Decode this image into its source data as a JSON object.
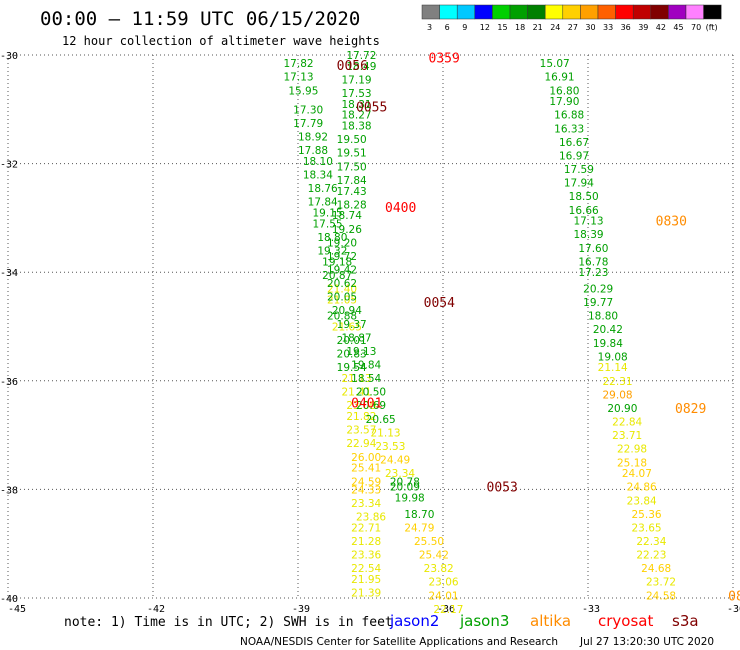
{
  "header": {
    "title": "00:00 – 11:59 UTC 06/15/2020",
    "subtitle": "12 hour collection of altimeter wave heights"
  },
  "legend": {
    "colors": [
      "#808080",
      "#00ffff",
      "#00c8ff",
      "#0000ff",
      "#00d000",
      "#00a000",
      "#008000",
      "#ffff00",
      "#ffd000",
      "#ffa000",
      "#ff6000",
      "#ff0000",
      "#c00000",
      "#800000",
      "#a000c0",
      "#ff80ff",
      "#000000"
    ],
    "labels": [
      "3",
      "6",
      "9",
      "12",
      "15",
      "18",
      "21",
      "24",
      "27",
      "30",
      "33",
      "36",
      "39",
      "42",
      "45",
      "70",
      "(ft)"
    ]
  },
  "footer": {
    "note": "note: 1) Time is in UTC; 2) SWH is in feet",
    "satellites": [
      {
        "name": "jason2",
        "color": "#0000ff"
      },
      {
        "name": "jason3",
        "color": "#00a000"
      },
      {
        "name": "altika",
        "color": "#ff8c00"
      },
      {
        "name": "cryosat",
        "color": "#ff0000"
      },
      {
        "name": "s3a",
        "color": "#800000"
      }
    ],
    "credit": "NOAA/NESDIS Center for Satellite Applications and Research",
    "timestamp": "Jul 27 13:20:30 UTC 2020"
  },
  "chart_data": {
    "type": "scatter",
    "title": "12 hour collection of altimeter wave heights",
    "x_range": [
      -45,
      -30
    ],
    "y_range": [
      -40,
      -30
    ],
    "x_ticks": [
      "-45",
      "-42",
      "-39",
      "-36",
      "-33",
      "-30"
    ],
    "y_ticks": [
      "-30",
      "-32",
      "-34",
      "-36",
      "-38",
      "-40"
    ],
    "grid": "dotted",
    "swh_units": "ft",
    "color_scale": [
      {
        "min": 15,
        "max": 21,
        "color": "#00a000"
      },
      {
        "min": 21,
        "max": 24,
        "color": "#e8e800"
      },
      {
        "min": 24,
        "max": 27,
        "color": "#ffd000"
      },
      {
        "min": 27,
        "max": 30,
        "color": "#ffa000"
      }
    ],
    "track_points": [
      {
        "lon": -39.3,
        "lat": -30.15,
        "swh": "17.82"
      },
      {
        "lon": -39.3,
        "lat": -30.4,
        "swh": "17.13"
      },
      {
        "lon": -39.2,
        "lat": -30.65,
        "swh": "15.95"
      },
      {
        "lon": -39.1,
        "lat": -31.0,
        "swh": "17.30"
      },
      {
        "lon": -39.1,
        "lat": -31.25,
        "swh": "17.79"
      },
      {
        "lon": -39.0,
        "lat": -31.5,
        "swh": "18.92"
      },
      {
        "lon": -39.0,
        "lat": -31.75,
        "swh": "17.88"
      },
      {
        "lon": -38.9,
        "lat": -31.95,
        "swh": "18.10"
      },
      {
        "lon": -38.9,
        "lat": -32.2,
        "swh": "18.34"
      },
      {
        "lon": -38.8,
        "lat": -32.45,
        "swh": "18.76"
      },
      {
        "lon": -38.8,
        "lat": -32.7,
        "swh": "17.84"
      },
      {
        "lon": -38.7,
        "lat": -32.9,
        "swh": "19.15"
      },
      {
        "lon": -38.7,
        "lat": -33.1,
        "swh": "17.55"
      },
      {
        "lon": -38.6,
        "lat": -33.35,
        "swh": "18.80"
      },
      {
        "lon": -38.6,
        "lat": -33.6,
        "swh": "19.32"
      },
      {
        "lon": -38.5,
        "lat": -33.8,
        "swh": "19.18"
      },
      {
        "lon": -38.5,
        "lat": -34.05,
        "swh": "20.87"
      },
      {
        "lon": -38.4,
        "lat": -34.3,
        "swh": "21.40"
      },
      {
        "lon": -38.4,
        "lat": -34.5,
        "swh": "21.05"
      },
      {
        "lon": -38.4,
        "lat": -34.8,
        "swh": "20.88"
      },
      {
        "lon": -38.3,
        "lat": -35.0,
        "swh": "21.65"
      },
      {
        "lon": -38.2,
        "lat": -35.25,
        "swh": "20.01"
      },
      {
        "lon": -38.2,
        "lat": -35.5,
        "swh": "20.83"
      },
      {
        "lon": -38.2,
        "lat": -35.75,
        "swh": "19.54"
      },
      {
        "lon": -38.1,
        "lat": -35.95,
        "swh": "21.13"
      },
      {
        "lon": -38.1,
        "lat": -36.2,
        "swh": "21.41"
      },
      {
        "lon": -38.0,
        "lat": -36.45,
        "swh": "23.00"
      },
      {
        "lon": -38.0,
        "lat": -36.65,
        "swh": "21.82"
      },
      {
        "lon": -38.0,
        "lat": -36.9,
        "swh": "23.57"
      },
      {
        "lon": -38.0,
        "lat": -37.15,
        "swh": "22.94"
      },
      {
        "lon": -37.9,
        "lat": -37.4,
        "swh": "26.00"
      },
      {
        "lon": -37.9,
        "lat": -37.6,
        "swh": "25.41"
      },
      {
        "lon": -37.9,
        "lat": -37.85,
        "swh": "24.59"
      },
      {
        "lon": -37.9,
        "lat": -38.0,
        "swh": "24.33"
      },
      {
        "lon": -37.9,
        "lat": -38.25,
        "swh": "23.34"
      },
      {
        "lon": -37.8,
        "lat": -38.5,
        "swh": "23.86"
      },
      {
        "lon": -37.9,
        "lat": -38.7,
        "swh": "22.71"
      },
      {
        "lon": -37.9,
        "lat": -38.95,
        "swh": "21.28"
      },
      {
        "lon": -37.9,
        "lat": -39.2,
        "swh": "23.36"
      },
      {
        "lon": -37.9,
        "lat": -39.45,
        "swh": "22.54"
      },
      {
        "lon": -37.9,
        "lat": -39.65,
        "swh": "21.95"
      },
      {
        "lon": -37.9,
        "lat": -39.9,
        "swh": "21.39"
      },
      {
        "lon": -38.0,
        "lat": -30.0,
        "swh": "17.72"
      },
      {
        "lon": -38.0,
        "lat": -30.2,
        "swh": "18.49"
      },
      {
        "lon": -38.1,
        "lat": -30.45,
        "swh": "17.19"
      },
      {
        "lon": -38.1,
        "lat": -30.7,
        "swh": "17.53"
      },
      {
        "lon": -38.1,
        "lat": -30.9,
        "swh": "18.31"
      },
      {
        "lon": -38.1,
        "lat": -31.1,
        "swh": "18.27"
      },
      {
        "lon": -38.1,
        "lat": -31.3,
        "swh": "18.38"
      },
      {
        "lon": -38.2,
        "lat": -31.55,
        "swh": "19.50"
      },
      {
        "lon": -38.2,
        "lat": -31.8,
        "swh": "19.51"
      },
      {
        "lon": -38.2,
        "lat": -32.05,
        "swh": "17.50"
      },
      {
        "lon": -38.2,
        "lat": -32.3,
        "swh": "17.84"
      },
      {
        "lon": -38.2,
        "lat": -32.5,
        "swh": "17.43"
      },
      {
        "lon": -38.2,
        "lat": -32.75,
        "swh": "18.28"
      },
      {
        "lon": -38.3,
        "lat": -32.95,
        "swh": "18.74"
      },
      {
        "lon": -38.3,
        "lat": -33.2,
        "swh": "19.26"
      },
      {
        "lon": -38.4,
        "lat": -33.45,
        "swh": "19.20"
      },
      {
        "lon": -38.4,
        "lat": -33.7,
        "swh": "19.72"
      },
      {
        "lon": -38.4,
        "lat": -33.95,
        "swh": "19.42"
      },
      {
        "lon": -38.4,
        "lat": -34.2,
        "swh": "20.62"
      },
      {
        "lon": -38.4,
        "lat": -34.45,
        "swh": "20.05"
      },
      {
        "lon": -38.3,
        "lat": -34.7,
        "swh": "20.94"
      },
      {
        "lon": -38.2,
        "lat": -34.95,
        "swh": "19.37"
      },
      {
        "lon": -38.1,
        "lat": -35.2,
        "swh": "18.87"
      },
      {
        "lon": -38.0,
        "lat": -35.45,
        "swh": "19.13"
      },
      {
        "lon": -37.9,
        "lat": -35.7,
        "swh": "19.84"
      },
      {
        "lon": -37.9,
        "lat": -35.95,
        "swh": "18.54"
      },
      {
        "lon": -37.8,
        "lat": -36.2,
        "swh": "20.50"
      },
      {
        "lon": -37.8,
        "lat": -36.45,
        "swh": "20.69"
      },
      {
        "lon": -37.6,
        "lat": -36.7,
        "swh": "20.65"
      },
      {
        "lon": -37.5,
        "lat": -36.95,
        "swh": "21.13"
      },
      {
        "lon": -37.4,
        "lat": -37.2,
        "swh": "23.53"
      },
      {
        "lon": -37.3,
        "lat": -37.45,
        "swh": "24.49"
      },
      {
        "lon": -37.2,
        "lat": -37.7,
        "swh": "23.34"
      },
      {
        "lon": -37.1,
        "lat": -37.85,
        "swh": "20.78"
      },
      {
        "lon": -37.1,
        "lat": -37.95,
        "swh": "20.09"
      },
      {
        "lon": -37.0,
        "lat": -38.15,
        "swh": "19.98"
      },
      {
        "lon": -36.8,
        "lat": -38.45,
        "swh": "18.70"
      },
      {
        "lon": -36.8,
        "lat": -38.7,
        "swh": "24.79"
      },
      {
        "lon": -36.6,
        "lat": -38.95,
        "swh": "25.50"
      },
      {
        "lon": -36.5,
        "lat": -39.2,
        "swh": "25.42"
      },
      {
        "lon": -36.4,
        "lat": -39.45,
        "swh": "23.82"
      },
      {
        "lon": -36.3,
        "lat": -39.7,
        "swh": "23.06"
      },
      {
        "lon": -36.3,
        "lat": -39.95,
        "swh": "24.01"
      },
      {
        "lon": -36.2,
        "lat": -40.2,
        "swh": "22.17"
      },
      {
        "lon": -34.0,
        "lat": -30.15,
        "swh": "15.07"
      },
      {
        "lon": -33.9,
        "lat": -30.4,
        "swh": "16.91"
      },
      {
        "lon": -33.8,
        "lat": -30.65,
        "swh": "16.80"
      },
      {
        "lon": -33.8,
        "lat": -30.85,
        "swh": "17.90"
      },
      {
        "lon": -33.7,
        "lat": -31.1,
        "swh": "16.88"
      },
      {
        "lon": -33.7,
        "lat": -31.35,
        "swh": "16.33"
      },
      {
        "lon": -33.6,
        "lat": -31.6,
        "swh": "16.67"
      },
      {
        "lon": -33.6,
        "lat": -31.85,
        "swh": "16.97"
      },
      {
        "lon": -33.5,
        "lat": -32.1,
        "swh": "17.59"
      },
      {
        "lon": -33.5,
        "lat": -32.35,
        "swh": "17.94"
      },
      {
        "lon": -33.4,
        "lat": -32.6,
        "swh": "18.50"
      },
      {
        "lon": -33.4,
        "lat": -32.85,
        "swh": "16.66"
      },
      {
        "lon": -33.3,
        "lat": -33.05,
        "swh": "17.13"
      },
      {
        "lon": -33.3,
        "lat": -33.3,
        "swh": "18.39"
      },
      {
        "lon": -33.2,
        "lat": -33.55,
        "swh": "17.60"
      },
      {
        "lon": -33.2,
        "lat": -33.8,
        "swh": "16.78"
      },
      {
        "lon": -33.2,
        "lat": -34.0,
        "swh": "17.23"
      },
      {
        "lon": -33.1,
        "lat": -34.3,
        "swh": "20.29"
      },
      {
        "lon": -33.1,
        "lat": -34.55,
        "swh": "19.77"
      },
      {
        "lon": -33.0,
        "lat": -34.8,
        "swh": "18.80"
      },
      {
        "lon": -32.9,
        "lat": -35.05,
        "swh": "20.42"
      },
      {
        "lon": -32.9,
        "lat": -35.3,
        "swh": "19.84"
      },
      {
        "lon": -32.8,
        "lat": -35.55,
        "swh": "19.08"
      },
      {
        "lon": -32.8,
        "lat": -35.75,
        "swh": "21.14"
      },
      {
        "lon": -32.7,
        "lat": -36.0,
        "swh": "22.31"
      },
      {
        "lon": -32.7,
        "lat": -36.25,
        "swh": "29.08"
      },
      {
        "lon": -32.6,
        "lat": -36.5,
        "swh": "20.90"
      },
      {
        "lon": -32.5,
        "lat": -36.75,
        "swh": "22.84"
      },
      {
        "lon": -32.5,
        "lat": -37.0,
        "swh": "23.71"
      },
      {
        "lon": -32.4,
        "lat": -37.25,
        "swh": "22.98"
      },
      {
        "lon": -32.4,
        "lat": -37.5,
        "swh": "25.18"
      },
      {
        "lon": -32.3,
        "lat": -37.7,
        "swh": "24.07"
      },
      {
        "lon": -32.2,
        "lat": -37.95,
        "swh": "24.86"
      },
      {
        "lon": -32.2,
        "lat": -38.2,
        "swh": "23.84"
      },
      {
        "lon": -32.1,
        "lat": -38.45,
        "swh": "25.36"
      },
      {
        "lon": -32.1,
        "lat": -38.7,
        "swh": "23.65"
      },
      {
        "lon": -32.0,
        "lat": -38.95,
        "swh": "22.34"
      },
      {
        "lon": -32.0,
        "lat": -39.2,
        "swh": "22.23"
      },
      {
        "lon": -31.9,
        "lat": -39.45,
        "swh": "24.68"
      },
      {
        "lon": -31.8,
        "lat": -39.7,
        "swh": "23.72"
      },
      {
        "lon": -31.8,
        "lat": -39.95,
        "swh": "24.58"
      }
    ],
    "time_labels": [
      {
        "text": "0056",
        "lon": -38.2,
        "lat": -30.18,
        "color": "#800000"
      },
      {
        "text": "0359",
        "lon": -36.3,
        "lat": -30.05,
        "color": "#ff0000"
      },
      {
        "text": "0055",
        "lon": -37.8,
        "lat": -30.95,
        "color": "#800000"
      },
      {
        "text": "0400",
        "lon": -37.2,
        "lat": -32.8,
        "color": "#ff0000"
      },
      {
        "text": "0830",
        "lon": -31.6,
        "lat": -33.05,
        "color": "#ff8c00"
      },
      {
        "text": "0054",
        "lon": -36.4,
        "lat": -34.55,
        "color": "#800000"
      },
      {
        "text": "0401",
        "lon": -37.9,
        "lat": -36.4,
        "color": "#ff0000"
      },
      {
        "text": "0829",
        "lon": -31.2,
        "lat": -36.5,
        "color": "#ff8c00"
      },
      {
        "text": "0053",
        "lon": -35.1,
        "lat": -37.95,
        "color": "#800000"
      },
      {
        "text": "08",
        "lon": -30.1,
        "lat": -39.95,
        "color": "#ff8c00"
      }
    ]
  }
}
